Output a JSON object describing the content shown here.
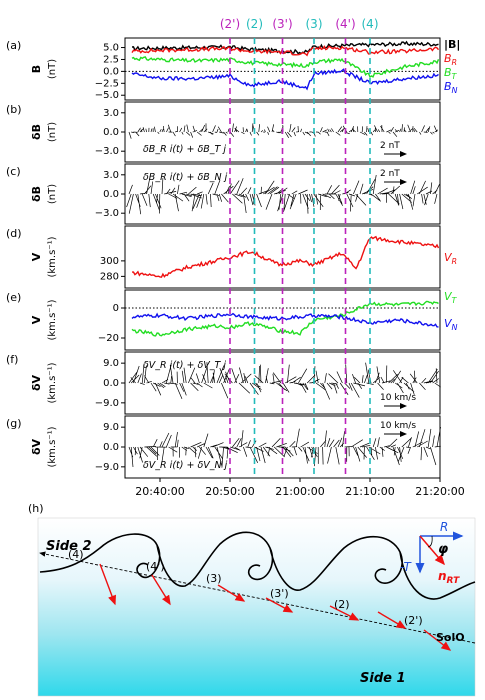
{
  "markers": {
    "labels": [
      "(2')",
      "(2)",
      "(3')",
      "(3)",
      "(4')",
      "(4)"
    ],
    "times": [
      "20:50:00",
      "20:53:30",
      "20:57:30",
      "21:02:00",
      "21:06:30",
      "21:10:00"
    ],
    "colors": [
      "#bb22bb",
      "#22bbbb",
      "#bb22bb",
      "#22bbbb",
      "#bb22bb",
      "#22bbbb"
    ]
  },
  "panel_letters": [
    "(a)",
    "(b)",
    "(c)",
    "(d)",
    "(e)",
    "(f)",
    "(g)",
    "(h)"
  ],
  "colors": {
    "red": "#ee1111",
    "green": "#22dd22",
    "blue": "#1111ee",
    "magenta": "#bb22bb",
    "cyan": "#22bbbb"
  },
  "chart_data": [
    {
      "type": "line",
      "panel": "a",
      "ylabel": "B",
      "yunit": "(nT)",
      "yticks": [
        "5.0",
        "2.5",
        "0.0",
        "−2.5",
        "−5.0"
      ],
      "ylim": [
        -6,
        7
      ],
      "series": [
        {
          "name": "|B|",
          "color": "#000000",
          "x": [
            "20:36",
            "20:40",
            "20:45",
            "20:50",
            "20:53",
            "20:57",
            "21:01",
            "21:02",
            "21:06",
            "21:10",
            "21:15",
            "21:20"
          ],
          "y": [
            4.8,
            4.9,
            5.0,
            5.1,
            4.6,
            4.3,
            4.0,
            5.2,
            5.4,
            5.6,
            5.8,
            5.7
          ]
        },
        {
          "name": "B_R",
          "color": "#ee1111",
          "x": [
            "20:36",
            "20:40",
            "20:45",
            "20:50",
            "20:53",
            "20:57",
            "21:01",
            "21:02",
            "21:06",
            "21:10",
            "21:15",
            "21:20"
          ],
          "y": [
            4.2,
            4.4,
            4.6,
            4.8,
            4.2,
            4.1,
            3.6,
            4.8,
            5.0,
            4.0,
            4.2,
            4.8
          ]
        },
        {
          "name": "B_T",
          "color": "#22dd22",
          "x": [
            "20:36",
            "20:40",
            "20:45",
            "20:50",
            "20:53",
            "20:57",
            "21:01",
            "21:02",
            "21:06",
            "21:10",
            "21:15",
            "21:20"
          ],
          "y": [
            2.8,
            2.5,
            2.2,
            2.5,
            1.8,
            1.5,
            1.2,
            2.0,
            2.5,
            -1.0,
            1.0,
            2.2
          ]
        },
        {
          "name": "B_N",
          "color": "#1111ee",
          "x": [
            "20:36",
            "20:40",
            "20:45",
            "20:50",
            "20:53",
            "20:57",
            "21:01",
            "21:02",
            "21:06",
            "21:10",
            "21:15",
            "21:20"
          ],
          "y": [
            -0.5,
            -1.5,
            -1.5,
            -1.0,
            -3.0,
            -2.0,
            -3.5,
            -0.5,
            0.2,
            -2.5,
            -1.5,
            -0.8
          ]
        }
      ]
    },
    {
      "type": "vector",
      "panel": "b",
      "ylabel": "δB",
      "yunit": "(nT)",
      "yticks": [
        "3.0",
        "0.0",
        "−3.0"
      ],
      "annotation": "δB_R i(t) + δB_T j",
      "scale_label": "2 nT"
    },
    {
      "type": "vector",
      "panel": "c",
      "ylabel": "δB",
      "yunit": "(nT)",
      "yticks": [
        "3.0",
        "0.0",
        "−3.0"
      ],
      "annotation": "δB_R i(t) + δB_N j",
      "scale_label": "2 nT"
    },
    {
      "type": "line",
      "panel": "d",
      "ylabel": "V",
      "yunit": "(km.s⁻¹)",
      "yticks": [
        "300",
        "280"
      ],
      "ylim": [
        265,
        345
      ],
      "series": [
        {
          "name": "V_R",
          "color": "#ee1111",
          "x": [
            "20:36",
            "20:40",
            "20:44",
            "20:48",
            "20:50",
            "20:53",
            "20:57",
            "21:00",
            "21:02",
            "21:06",
            "21:08",
            "21:10",
            "21:14",
            "21:20"
          ],
          "y": [
            285,
            280,
            292,
            300,
            305,
            312,
            295,
            300,
            295,
            310,
            290,
            330,
            325,
            318
          ]
        }
      ]
    },
    {
      "type": "line",
      "panel": "e",
      "ylabel": "V",
      "yunit": "(km.s⁻¹)",
      "yticks": [
        "0",
        "−20"
      ],
      "ylim": [
        -28,
        12
      ],
      "series": [
        {
          "name": "V_T",
          "color": "#22dd22",
          "x": [
            "20:36",
            "20:40",
            "20:44",
            "20:48",
            "20:50",
            "20:53",
            "20:57",
            "21:00",
            "21:02",
            "21:06",
            "21:10",
            "21:14",
            "21:20"
          ],
          "y": [
            -15,
            -18,
            -14,
            -12,
            -13,
            -10,
            -15,
            -17,
            -8,
            -5,
            3,
            2,
            4
          ]
        },
        {
          "name": "V_N",
          "color": "#1111ee",
          "x": [
            "20:36",
            "20:40",
            "20:44",
            "20:48",
            "20:50",
            "20:53",
            "20:57",
            "21:00",
            "21:02",
            "21:06",
            "21:10",
            "21:14",
            "21:20"
          ],
          "y": [
            -6,
            -5,
            -7,
            -5,
            -4,
            -6,
            -7,
            -6,
            -5,
            -6,
            -10,
            -8,
            -12
          ]
        }
      ]
    },
    {
      "type": "vector",
      "panel": "f",
      "ylabel": "δV",
      "yunit": "(km.s⁻¹)",
      "yticks": [
        "9.0",
        "0.0",
        "−9.0"
      ],
      "annotation": "δV_R i(t) + δV_T j",
      "scale_label": "10 km/s"
    },
    {
      "type": "vector",
      "panel": "g",
      "ylabel": "δV",
      "yunit": "(km.s⁻¹)",
      "yticks": [
        "9.0",
        "0.0",
        "−9.0"
      ],
      "annotation": "δV_R i(t) + δV_N j",
      "scale_label": "10 km/s"
    }
  ],
  "xaxis": {
    "ticks": [
      "20:40:00",
      "20:50:00",
      "21:00:00",
      "21:10:00",
      "21:20:00"
    ],
    "range": [
      "20:35:00",
      "21:20:00"
    ]
  },
  "diagram": {
    "side2": "Side 2",
    "side1": "Side 1",
    "wave_labels": [
      "(4)",
      "(4')",
      "(3)",
      "(3')",
      "(2)",
      "(2')"
    ],
    "solo": "SolO",
    "axis_R": "R",
    "axis_T": "-T",
    "phi": "φ",
    "nrt": "n",
    "nrt_sub": "RT"
  }
}
